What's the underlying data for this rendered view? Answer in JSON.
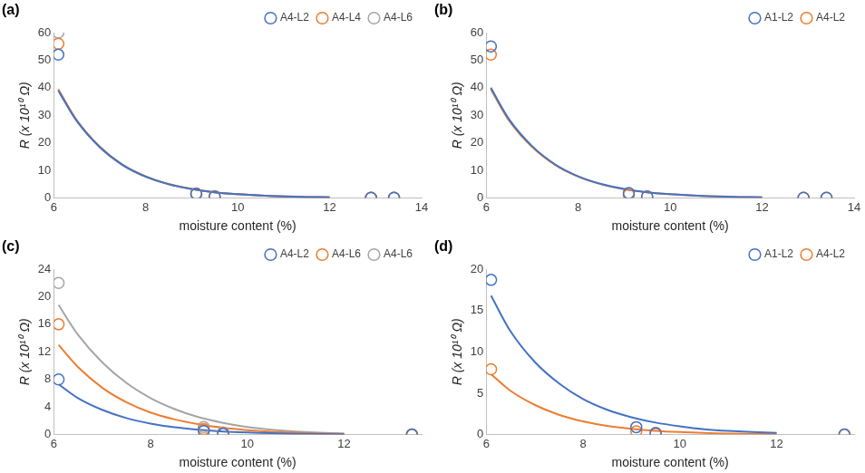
{
  "chart_data": [
    {
      "type": "scatter",
      "title": "(a)",
      "x_label": "moisture content (%)",
      "y_label": "R (x 10¹⁰ Ω)",
      "xlim": [
        6,
        14
      ],
      "xticks": [
        6,
        8,
        10,
        12,
        14
      ],
      "ylim": [
        0,
        60
      ],
      "yticks": [
        0,
        10,
        20,
        30,
        40,
        50,
        60
      ],
      "grid": false,
      "legend": "top-right",
      "series": [
        {
          "name": "A4-L2",
          "color": "#4472c4",
          "marker": "circle",
          "line_style": "solid",
          "x": [
            6.1,
            9.1,
            9.5,
            12.9,
            13.4
          ],
          "values": [
            52,
            1.5,
            0.5,
            0.1,
            0.1
          ],
          "fit": {
            "x": [
              6.1,
              6.5,
              7,
              7.5,
              8,
              8.5,
              9,
              9.5,
              10,
              10.5,
              11,
              11.5,
              12
            ],
            "values": [
              39,
              28,
              18.5,
              12,
              7.8,
              5,
              3.3,
              2.1,
              1.4,
              0.9,
              0.6,
              0.4,
              0.25
            ]
          }
        },
        {
          "name": "A4-L4",
          "color": "#ed7d31",
          "marker": "circle",
          "line_style": "solid",
          "x": [
            6.1,
            9.1,
            9.5,
            12.9,
            13.4
          ],
          "values": [
            56,
            1.6,
            0.6,
            0.1,
            0.1
          ],
          "fit": {
            "x": [
              6.1,
              6.5,
              7,
              7.5,
              8,
              8.5,
              9,
              9.5,
              10,
              10.5,
              11,
              11.5,
              12
            ],
            "values": [
              39.5,
              28.3,
              18.7,
              12.1,
              7.9,
              5.1,
              3.3,
              2.1,
              1.4,
              0.9,
              0.6,
              0.4,
              0.25
            ]
          }
        },
        {
          "name": "A4-L6",
          "color": "#a5a5a5",
          "marker": "circle",
          "line_style": "solid",
          "x": [
            6.1,
            9.1,
            9.5,
            12.9,
            13.4
          ],
          "values": [
            60,
            1.7,
            0.7,
            0.1,
            0.1
          ],
          "fit": {
            "x": [
              6.1,
              6.5,
              7,
              7.5,
              8,
              8.5,
              9,
              9.5,
              10,
              10.5,
              11,
              11.5,
              12
            ],
            "values": [
              39,
              28,
              18.4,
              11.9,
              7.7,
              5,
              3.2,
              2.1,
              1.4,
              0.9,
              0.6,
              0.4,
              0.25
            ]
          }
        }
      ]
    },
    {
      "type": "scatter",
      "title": "(b)",
      "x_label": "moisture content (%)",
      "y_label": "R (x 10¹⁰ Ω)",
      "xlim": [
        6,
        14
      ],
      "xticks": [
        6,
        8,
        10,
        12,
        14
      ],
      "ylim": [
        0,
        60
      ],
      "yticks": [
        0,
        10,
        20,
        30,
        40,
        50,
        60
      ],
      "grid": false,
      "legend": "top-right",
      "series": [
        {
          "name": "A1-L2",
          "color": "#4472c4",
          "marker": "circle",
          "line_style": "solid",
          "x": [
            6.1,
            9.1,
            9.5,
            12.9,
            13.4
          ],
          "values": [
            55,
            1.8,
            0.6,
            0.1,
            0.1
          ],
          "fit": {
            "x": [
              6.1,
              6.5,
              7,
              7.5,
              8,
              8.5,
              9,
              9.5,
              10,
              10.5,
              11,
              11.5,
              12
            ],
            "values": [
              40,
              28.5,
              18.8,
              12.2,
              7.9,
              5.1,
              3.3,
              2.1,
              1.4,
              0.9,
              0.6,
              0.4,
              0.25
            ]
          }
        },
        {
          "name": "A4-L2",
          "color": "#ed7d31",
          "marker": "circle",
          "line_style": "solid",
          "x": [
            6.1,
            9.1,
            9.5,
            12.9,
            13.4
          ],
          "values": [
            52,
            1.2,
            0.5,
            0.1,
            0.1
          ],
          "fit": {
            "x": [
              6.1,
              6.5,
              7,
              7.5,
              8,
              8.5,
              9,
              9.5,
              10,
              10.5,
              11,
              11.5,
              12
            ],
            "values": [
              39.5,
              28,
              18.5,
              12,
              7.8,
              5,
              3.2,
              2.1,
              1.4,
              0.9,
              0.6,
              0.4,
              0.25
            ]
          }
        }
      ]
    },
    {
      "type": "scatter",
      "title": "(c)",
      "x_label": "moisture content (%)",
      "y_label": "R (x 10¹⁰ Ω)",
      "xlim": [
        6,
        13.6
      ],
      "xticks": [
        6,
        8,
        10,
        12
      ],
      "ylim": [
        0,
        24
      ],
      "yticks": [
        0,
        4,
        8,
        12,
        16,
        20,
        24
      ],
      "grid": false,
      "legend": "top-right",
      "series": [
        {
          "name": "A4-L2",
          "color": "#4472c4",
          "marker": "circle",
          "line_style": "solid",
          "x": [
            6.1,
            9.1,
            9.5,
            13.4
          ],
          "values": [
            8,
            0.5,
            0.1,
            0
          ],
          "fit": {
            "x": [
              6.1,
              6.5,
              7,
              7.5,
              8,
              8.5,
              9,
              9.5,
              10,
              10.5,
              11,
              12
            ],
            "values": [
              7.3,
              5.3,
              3.6,
              2.4,
              1.6,
              1.05,
              0.7,
              0.45,
              0.3,
              0.2,
              0.12,
              0.05
            ]
          }
        },
        {
          "name": "A4-L6",
          "color": "#ed7d31",
          "marker": "circle",
          "line_style": "solid",
          "x": [
            6.1,
            9.1,
            9.5,
            13.4
          ],
          "values": [
            16,
            0.8,
            0.2,
            0
          ],
          "fit": {
            "x": [
              6.1,
              6.5,
              7,
              7.5,
              8,
              8.5,
              9,
              9.5,
              10,
              10.5,
              11,
              12
            ],
            "values": [
              13,
              9.8,
              6.8,
              4.7,
              3.2,
              2.2,
              1.5,
              1,
              0.65,
              0.4,
              0.27,
              0.1
            ]
          }
        },
        {
          "name": "A4-L6",
          "color": "#a5a5a5",
          "marker": "circle",
          "line_style": "solid",
          "x": [
            6.1,
            9.1,
            9.5,
            13.4
          ],
          "values": [
            22,
            1.1,
            0.3,
            0
          ],
          "fit": {
            "x": [
              6.1,
              6.5,
              7,
              7.5,
              8,
              8.5,
              9,
              9.5,
              10,
              10.5,
              11,
              12
            ],
            "values": [
              18.8,
              14.5,
              10.5,
              7.5,
              5.3,
              3.7,
              2.5,
              1.7,
              1.1,
              0.7,
              0.45,
              0.15
            ]
          }
        }
      ]
    },
    {
      "type": "scatter",
      "title": "(d)",
      "x_label": "moisture content (%)",
      "y_label": "R (x 10¹⁰ Ω)",
      "xlim": [
        6,
        13.6
      ],
      "xticks": [
        6,
        8,
        10,
        12
      ],
      "ylim": [
        0,
        20
      ],
      "yticks": [
        0,
        5,
        10,
        15,
        20
      ],
      "grid": false,
      "legend": "top-right",
      "series": [
        {
          "name": "A1-L2",
          "color": "#4472c4",
          "marker": "circle",
          "line_style": "solid",
          "x": [
            6.1,
            9.1,
            9.5,
            13.4
          ],
          "values": [
            18.7,
            0.9,
            0.2,
            0
          ],
          "fit": {
            "x": [
              6.1,
              6.5,
              7,
              7.5,
              8,
              8.5,
              9,
              9.5,
              10,
              10.5,
              11,
              12
            ],
            "values": [
              16.8,
              12.5,
              8.8,
              6.2,
              4.3,
              3,
              2.1,
              1.45,
              1,
              0.65,
              0.45,
              0.2
            ]
          }
        },
        {
          "name": "A4-L2",
          "color": "#ed7d31",
          "marker": "circle",
          "line_style": "solid",
          "x": [
            6.1,
            9.1,
            9.5,
            13.4
          ],
          "values": [
            7.9,
            0.4,
            0.1,
            0
          ],
          "fit": {
            "x": [
              6.1,
              6.5,
              7,
              7.5,
              8,
              8.5,
              9,
              9.5,
              10,
              10.5,
              11,
              12
            ],
            "values": [
              7.3,
              5.3,
              3.6,
              2.4,
              1.6,
              1.05,
              0.7,
              0.45,
              0.3,
              0.2,
              0.12,
              0.05
            ]
          }
        }
      ]
    }
  ]
}
